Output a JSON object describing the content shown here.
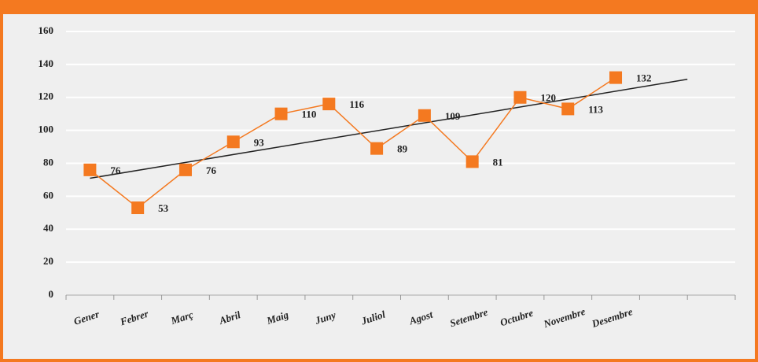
{
  "chart_data": {
    "type": "line",
    "categories": [
      "Gener",
      "Febrer",
      "Març",
      "Abril",
      "Maig",
      "Juny",
      "Juliol",
      "Agost",
      "Setembre",
      "Octubre",
      "Novembre",
      "Desembre",
      null,
      null
    ],
    "series": [
      {
        "color": "#f47920",
        "values": [
          76,
          53,
          76,
          93,
          110,
          116,
          89,
          109,
          81,
          120,
          113,
          132,
          null,
          null
        ]
      }
    ],
    "ylim": [
      0,
      160
    ],
    "yticks": [
      0,
      20,
      40,
      60,
      80,
      100,
      120,
      140,
      160
    ],
    "grid": true,
    "trendline": "linear",
    "trendline_color": "#222222"
  }
}
